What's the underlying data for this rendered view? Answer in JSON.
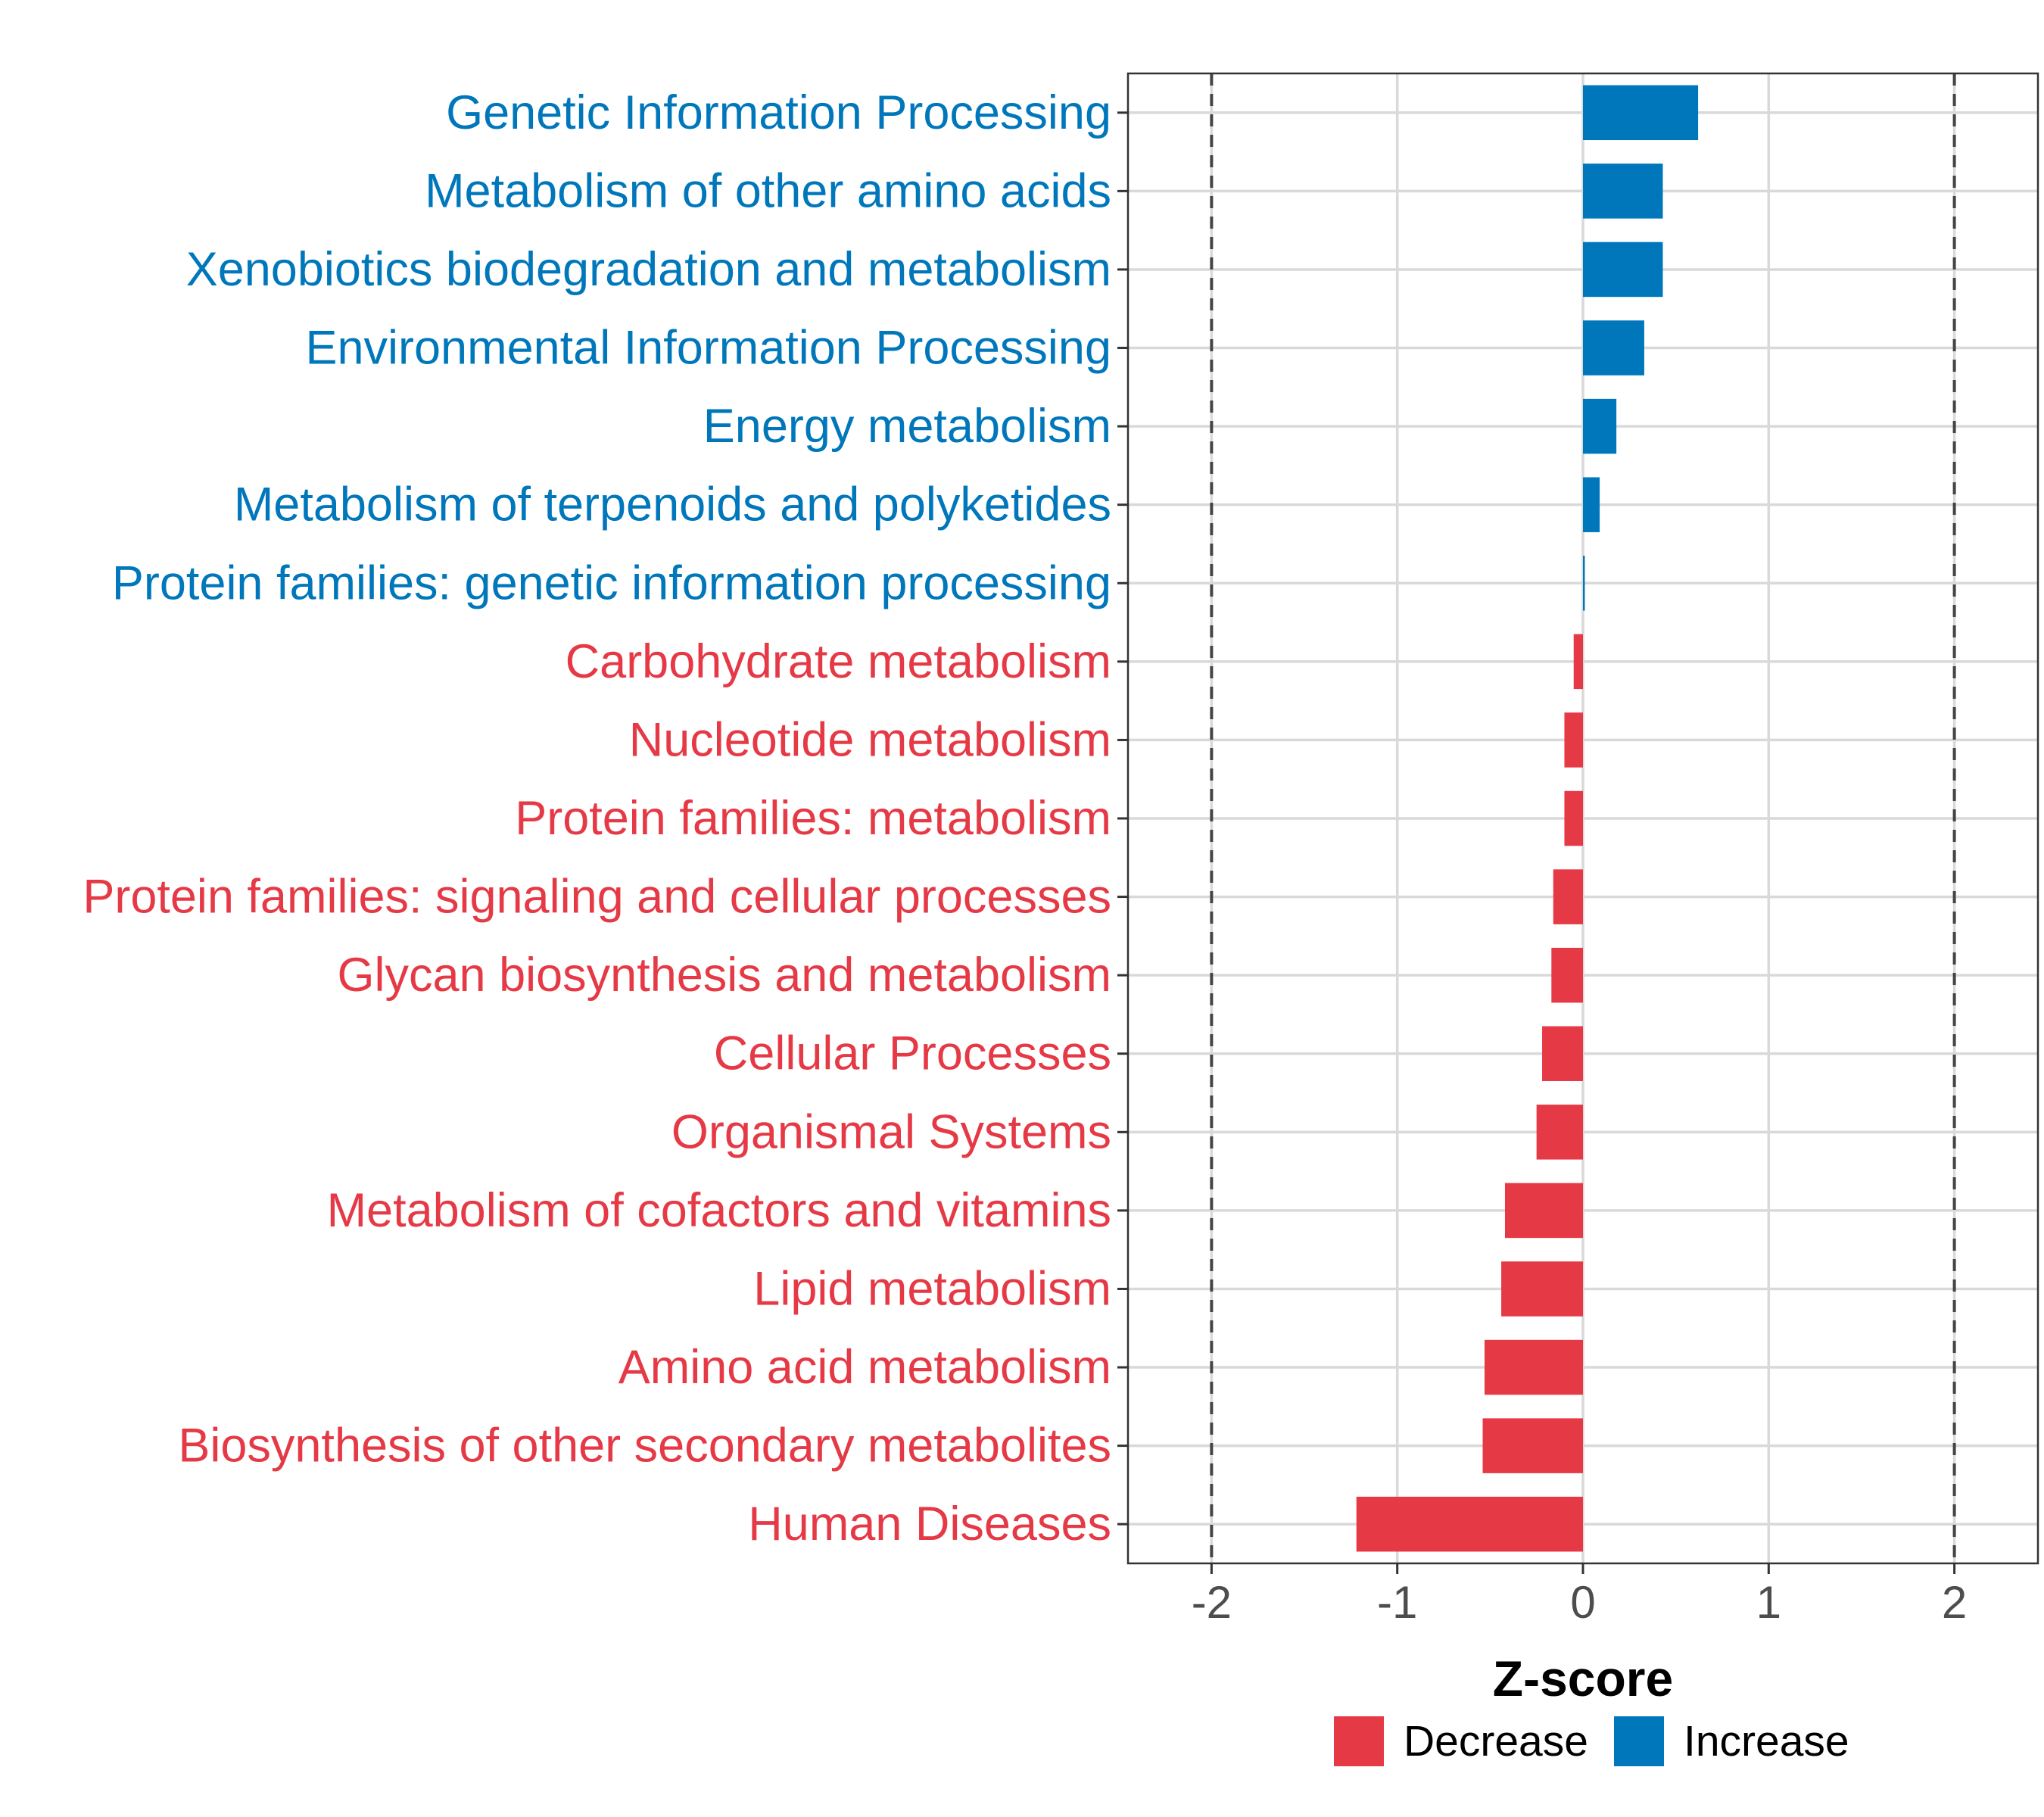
{
  "chart_data": {
    "type": "bar",
    "orientation": "horizontal",
    "xlabel": "Z-score",
    "ylabel": "",
    "xlim": [
      -2.45,
      2.45
    ],
    "xticks": [
      -2,
      -1,
      0,
      1,
      2
    ],
    "xtick_labels": [
      "-2",
      "-1",
      "0",
      "1",
      "2"
    ],
    "reference_lines": [
      -2,
      2
    ],
    "grid": true,
    "legend_position": "bottom",
    "colors": {
      "Decrease": "#e63946",
      "Increase": "#0077bb"
    },
    "legend": [
      {
        "name": "Decrease",
        "color": "#e63946"
      },
      {
        "name": "Increase",
        "color": "#0077bb"
      }
    ],
    "categories": [
      "Genetic Information Processing",
      "Metabolism of other amino acids",
      "Xenobiotics biodegradation and metabolism",
      "Environmental Information Processing",
      "Energy metabolism",
      "Metabolism of terpenoids and polyketides",
      "Protein families: genetic information processing",
      "Carbohydrate metabolism",
      "Nucleotide metabolism",
      "Protein families: metabolism",
      "Protein families: signaling and cellular processes",
      "Glycan biosynthesis and metabolism",
      "Cellular Processes",
      "Organismal Systems",
      "Metabolism of cofactors and vitamins",
      "Lipid metabolism",
      "Amino acid metabolism",
      "Biosynthesis of other secondary metabolites",
      "Human Diseases"
    ],
    "values": [
      0.62,
      0.43,
      0.43,
      0.33,
      0.18,
      0.09,
      0.01,
      -0.05,
      -0.1,
      -0.1,
      -0.16,
      -0.17,
      -0.22,
      -0.25,
      -0.42,
      -0.44,
      -0.53,
      -0.54,
      -1.22
    ],
    "groups": [
      "Increase",
      "Increase",
      "Increase",
      "Increase",
      "Increase",
      "Increase",
      "Increase",
      "Decrease",
      "Decrease",
      "Decrease",
      "Decrease",
      "Decrease",
      "Decrease",
      "Decrease",
      "Decrease",
      "Decrease",
      "Decrease",
      "Decrease",
      "Decrease"
    ]
  }
}
